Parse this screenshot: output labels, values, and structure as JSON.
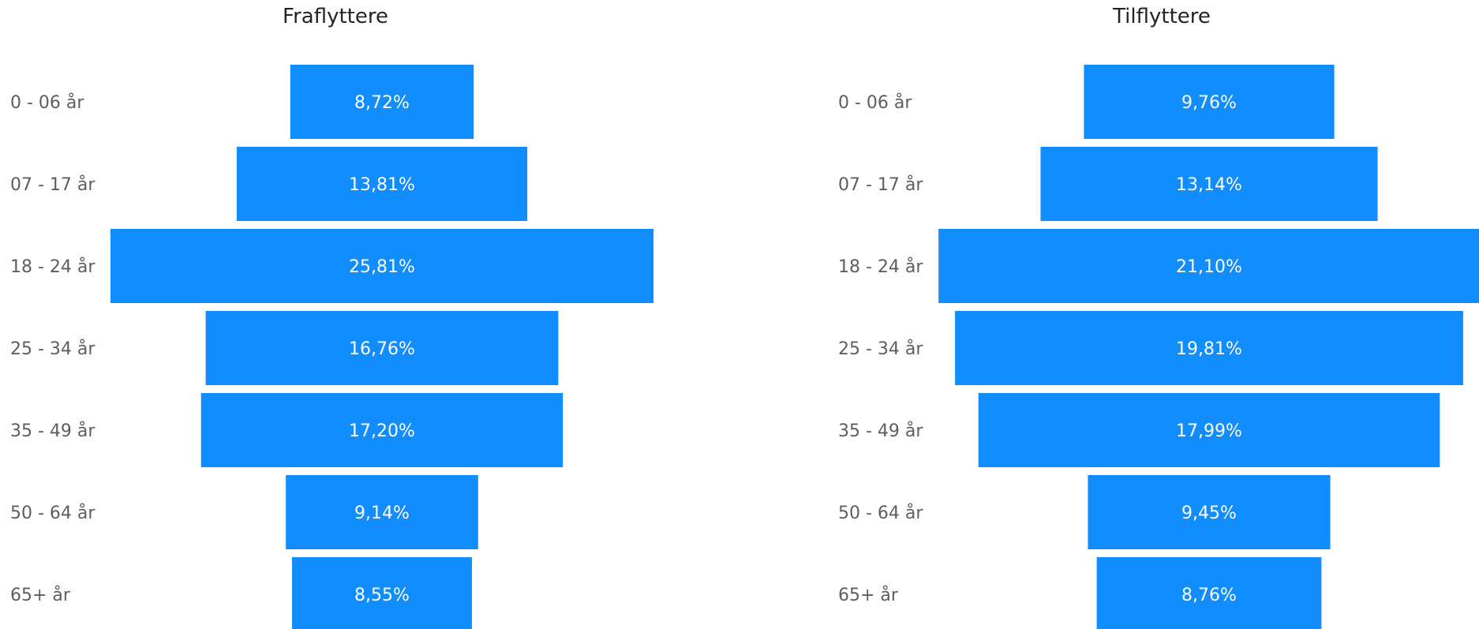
{
  "colors": {
    "bar": "#118dff",
    "bar_label": "#ffffff",
    "category_label": "#605e5c",
    "title": "#252423",
    "background": "#ffffff"
  },
  "chart_data": [
    {
      "type": "funnel",
      "title": "Fraflyttere",
      "categories": [
        "0 - 06 år",
        "07 - 17 år",
        "18 - 24 år",
        "25 - 34 år",
        "35 - 49 år",
        "50 - 64 år",
        "65+ år"
      ],
      "values": [
        8.72,
        13.81,
        25.81,
        16.76,
        17.2,
        9.14,
        8.55
      ],
      "labels": [
        "8,72%",
        "13,81%",
        "25,81%",
        "16,76%",
        "17,20%",
        "9,14%",
        "8,55%"
      ],
      "unit": "%"
    },
    {
      "type": "funnel",
      "title": "Tilflyttere",
      "categories": [
        "0 - 06 år",
        "07 - 17 år",
        "18 - 24 år",
        "25 - 34 år",
        "35 - 49 år",
        "50 - 64 år",
        "65+ år"
      ],
      "values": [
        9.76,
        13.14,
        21.1,
        19.81,
        17.99,
        9.45,
        8.76
      ],
      "labels": [
        "9,76%",
        "13,14%",
        "21,10%",
        "19,81%",
        "17,99%",
        "9,45%",
        "8,76%"
      ],
      "unit": "%"
    }
  ]
}
